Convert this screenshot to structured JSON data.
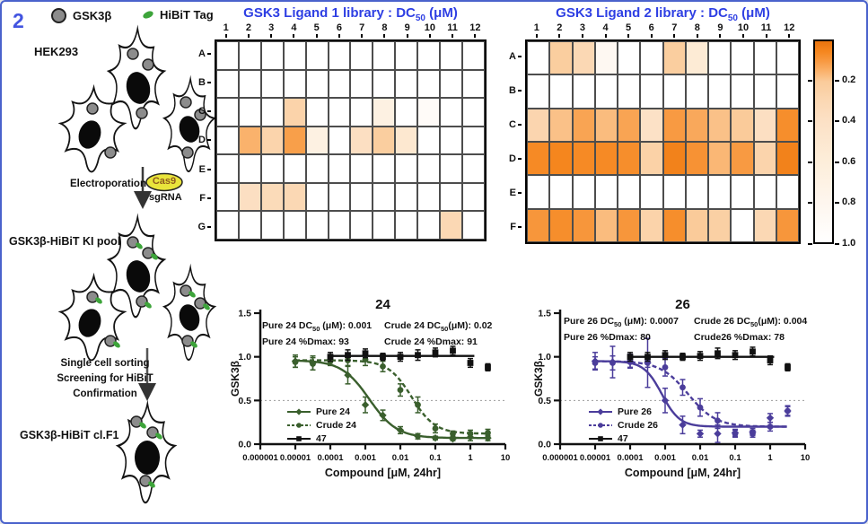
{
  "figure_number": "2",
  "colors": {
    "accent_blue": "#2E3FE3",
    "border_blue": "#4A62CC",
    "green_series": "#3A5F2D",
    "purple_series": "#4B3D9B",
    "black_series": "#111111",
    "gsk3b_dot_grey": "#8C8C8C",
    "hibit_green": "#3DA43A",
    "cas9_yellow": "#E9E43B"
  },
  "legend_top": {
    "gsk3b_label": "GSK3β",
    "hibit_label": "HiBiT Tag"
  },
  "diagram": {
    "cell_line_label": "HEK293",
    "electroporation_label": "Electroporation",
    "cas9_label": "Cas9",
    "sgrna_label": "sgRNA",
    "ki_pool_label": "GSK3β-HiBiT KI pool",
    "sorting_steps": [
      "Single cell sorting",
      "Screening for HiBiT",
      "Confirmation"
    ],
    "clone_label": "GSK3β-HiBiT cl.F1"
  },
  "chart_data": [
    {
      "type": "heatmap",
      "title": {
        "pre": "GSK3 Ligand 1 library : DC",
        "sub": "50",
        "tail": " (μM)"
      },
      "columns": [
        "1",
        "2",
        "3",
        "4",
        "5",
        "6",
        "7",
        "8",
        "9",
        "10",
        "11",
        "12"
      ],
      "rows": [
        "A",
        "B",
        "C",
        "D",
        "E",
        "F",
        "G"
      ],
      "value_meaning": "DC50 (uM), 1.0 = white/inactive",
      "values": [
        [
          1,
          1,
          1,
          1,
          1,
          1,
          1,
          1,
          1,
          1,
          1,
          1
        ],
        [
          1,
          1,
          1,
          1,
          1,
          1,
          1,
          1,
          1,
          1,
          1,
          1
        ],
        [
          1,
          1,
          1,
          0.26,
          1,
          1,
          1,
          0.68,
          1,
          0.92,
          1,
          1
        ],
        [
          1,
          0.15,
          0.27,
          0.11,
          0.68,
          1,
          0.38,
          0.22,
          0.5,
          1,
          1,
          1
        ],
        [
          1,
          1,
          1,
          1,
          1,
          1,
          1,
          1,
          1,
          1,
          1,
          1
        ],
        [
          1,
          0.38,
          0.33,
          0.3,
          1,
          1,
          1,
          1,
          1,
          1,
          1,
          1
        ],
        [
          1,
          1,
          1,
          1,
          1,
          1,
          1,
          1,
          1,
          1,
          0.3,
          1
        ]
      ],
      "color_scale": [
        [
          0,
          "#E8730E"
        ],
        [
          0.05,
          "#F5861E"
        ],
        [
          0.1,
          "#F89A42"
        ],
        [
          0.15,
          "#FAB26C"
        ],
        [
          0.2,
          "#FACB9A"
        ],
        [
          0.3,
          "#FBD8B4"
        ],
        [
          0.4,
          "#FCE1C6"
        ],
        [
          0.6,
          "#FDEEDA"
        ],
        [
          0.8,
          "#FEF6EE"
        ],
        [
          1,
          "#FFFFFF"
        ]
      ]
    },
    {
      "type": "heatmap",
      "title": {
        "pre": "GSK3 Ligand 2 library : DC",
        "sub": "50",
        "tail": " (μM)"
      },
      "columns": [
        "1",
        "2",
        "3",
        "4",
        "5",
        "6",
        "7",
        "8",
        "9",
        "10",
        "11",
        "12"
      ],
      "rows": [
        "A",
        "B",
        "C",
        "D",
        "E",
        "F"
      ],
      "value_meaning": "DC50 (uM), 1.0 = white/inactive",
      "values": [
        [
          1,
          0.22,
          0.3,
          0.85,
          1,
          1,
          0.22,
          0.55,
          1,
          1,
          1,
          1
        ],
        [
          1,
          1,
          1,
          1,
          1,
          1,
          1,
          1,
          1,
          1,
          1,
          1
        ],
        [
          0.28,
          0.18,
          0.12,
          0.17,
          0.12,
          0.4,
          0.1,
          0.13,
          0.18,
          0.2,
          0.38,
          0.07
        ],
        [
          0.06,
          0.05,
          0.06,
          0.06,
          0.07,
          0.25,
          0.04,
          0.08,
          0.16,
          0.1,
          0.27,
          0.04
        ],
        [
          1,
          1,
          1,
          1,
          1,
          1,
          1,
          1,
          1,
          1,
          1,
          1
        ],
        [
          0.09,
          0.07,
          0.09,
          0.17,
          0.09,
          0.26,
          0.07,
          0.2,
          0.24,
          1,
          0.3,
          0.09
        ]
      ],
      "color_scale": [
        [
          0,
          "#E8730E"
        ],
        [
          0.05,
          "#F5861E"
        ],
        [
          0.1,
          "#F89A42"
        ],
        [
          0.15,
          "#FAB26C"
        ],
        [
          0.2,
          "#FACB9A"
        ],
        [
          0.3,
          "#FBD8B4"
        ],
        [
          0.4,
          "#FCE1C6"
        ],
        [
          0.6,
          "#FDEEDA"
        ],
        [
          0.8,
          "#FEF6EE"
        ],
        [
          1,
          "#FFFFFF"
        ]
      ],
      "colorbar": {
        "orientation": "vertical",
        "ticks": [
          "0.2",
          "0.4",
          "0.6",
          "0.8",
          "1.0"
        ]
      }
    },
    {
      "type": "line",
      "title": "24",
      "xlabel": "Compound [μM, 24hr]",
      "ylabel": "GSK3β",
      "x_scale": "log",
      "x_ticks": [
        "0.000001",
        "0.00001",
        "0.0001",
        "0.001",
        "0.01",
        "0.1",
        "1",
        "10"
      ],
      "y_ticks": [
        "0.0",
        "0.5",
        "1.0",
        "1.5"
      ],
      "ylim": [
        0,
        1.5
      ],
      "gridline_y": 0.5,
      "annotations": {
        "left": [
          {
            "pre": "Pure 24 DC",
            "sub": "50",
            "tail": " (μM): 0.001"
          },
          {
            "pre": "Pure 24 %Dmax: 93"
          }
        ],
        "right": [
          {
            "pre": "Crude 24 DC",
            "sub": "50",
            "tail": "(μM): 0.02"
          },
          {
            "pre": "Crude 24 %Dmax: 91"
          }
        ]
      },
      "series": [
        {
          "name": "Pure 24",
          "color": "#3A5F2D",
          "style": "solid",
          "marker": "diamond",
          "x": [
            1e-05,
            3.16e-05,
            0.0001,
            0.000316,
            0.001,
            0.00316,
            0.01,
            0.0316,
            0.1,
            0.316,
            1,
            3.16
          ],
          "y": [
            0.95,
            0.93,
            0.96,
            0.79,
            0.45,
            0.33,
            0.16,
            0.09,
            0.07,
            0.06,
            0.08,
            0.07
          ],
          "err": [
            0.07,
            0.08,
            0.05,
            0.1,
            0.09,
            0.06,
            0.04,
            0.03,
            0.02,
            0.02,
            0.04,
            0.03
          ],
          "fit": {
            "top": 0.96,
            "bottom": 0.07,
            "ec50": 0.0013,
            "hill": 1.1
          }
        },
        {
          "name": "Crude 24",
          "color": "#3A5F2D",
          "style": "dashed",
          "dash": "5,3",
          "marker": "circle",
          "x": [
            1e-05,
            3.16e-05,
            0.0001,
            0.000316,
            0.001,
            0.00316,
            0.01,
            0.0316,
            0.1,
            0.316,
            1,
            3.16
          ],
          "y": [
            0.94,
            0.92,
            0.95,
            0.96,
            0.97,
            0.89,
            0.62,
            0.45,
            0.18,
            0.12,
            0.12,
            0.13
          ],
          "err": [
            0.06,
            0.07,
            0.05,
            0.06,
            0.07,
            0.06,
            0.07,
            0.09,
            0.05,
            0.03,
            0.04,
            0.04
          ],
          "fit": {
            "top": 0.96,
            "bottom": 0.12,
            "ec50": 0.021,
            "hill": 1.3
          }
        },
        {
          "name": "47",
          "color": "#111111",
          "style": "solid",
          "marker": "square",
          "x": [
            0.0001,
            0.000316,
            0.001,
            0.00316,
            0.01,
            0.0316,
            0.1,
            0.316,
            1,
            3.16
          ],
          "y": [
            1.0,
            1.02,
            1.04,
            1.0,
            1.0,
            1.02,
            1.05,
            1.07,
            0.93,
            0.88
          ],
          "err": [
            0.05,
            0.06,
            0.05,
            0.04,
            0.05,
            0.06,
            0.05,
            0.05,
            0.05,
            0.04
          ],
          "flat_line": {
            "x1": 0.0001,
            "x2": 1.3,
            "y": 1.01
          }
        }
      ]
    },
    {
      "type": "line",
      "title": "26",
      "xlabel": "Compound [μM, 24hr]",
      "ylabel": "GSK3β",
      "x_scale": "log",
      "x_ticks": [
        "0.000001",
        "0.00001",
        "0.0001",
        "0.001",
        "0.01",
        "0.1",
        "1",
        "10"
      ],
      "y_ticks": [
        "0.0",
        "0.5",
        "1.0",
        "1.5"
      ],
      "ylim": [
        0,
        1.5
      ],
      "gridline_y": 0.5,
      "annotations": {
        "left": [
          {
            "pre": "Pure 26 DC",
            "sub": "50",
            "tail": " (μM): 0.0007"
          },
          {
            "pre": "Pure 26 %Dmax: 80"
          }
        ],
        "right": [
          {
            "pre": "Crude 26 DC",
            "sub": "50",
            "tail": "(μM): 0.004"
          },
          {
            "pre": "Crude26 %Dmax: 78"
          }
        ]
      },
      "series": [
        {
          "name": "Pure 26",
          "color": "#4B3D9B",
          "style": "solid",
          "marker": "diamond",
          "x": [
            1e-05,
            3.16e-05,
            0.0001,
            0.000316,
            0.001,
            0.00316,
            0.01,
            0.0316,
            0.1,
            0.316,
            1,
            3.16
          ],
          "y": [
            0.95,
            0.94,
            0.95,
            0.93,
            0.5,
            0.22,
            0.12,
            0.12,
            0.13,
            0.14,
            0.3,
            0.38
          ],
          "err": [
            0.1,
            0.18,
            0.08,
            0.28,
            0.14,
            0.1,
            0.04,
            0.1,
            0.04,
            0.04,
            0.05,
            0.06
          ],
          "fit": {
            "top": 0.95,
            "bottom": 0.2,
            "ec50": 0.0008,
            "hill": 1.7
          }
        },
        {
          "name": "Crude 26",
          "color": "#4B3D9B",
          "style": "dashed",
          "dash": "5,3",
          "marker": "circle",
          "x": [
            1e-05,
            3.16e-05,
            0.0001,
            0.000316,
            0.001,
            0.00316,
            0.01,
            0.0316,
            0.1,
            0.316,
            1,
            3.16
          ],
          "y": [
            0.93,
            0.93,
            0.94,
            0.95,
            0.88,
            0.65,
            0.42,
            0.27,
            0.12,
            0.12,
            0.2,
            0.38
          ],
          "err": [
            0.07,
            0.08,
            0.06,
            0.07,
            0.1,
            0.09,
            0.1,
            0.09,
            0.04,
            0.04,
            0.05,
            0.05
          ],
          "fit": {
            "top": 0.95,
            "bottom": 0.2,
            "ec50": 0.0045,
            "hill": 1.1
          }
        },
        {
          "name": "47",
          "color": "#111111",
          "style": "solid",
          "marker": "square",
          "x": [
            0.0001,
            0.000316,
            0.001,
            0.00316,
            0.01,
            0.0316,
            0.1,
            0.316,
            1,
            3.16
          ],
          "y": [
            1.0,
            1.0,
            1.02,
            1.0,
            1.01,
            1.04,
            1.02,
            1.06,
            0.96,
            0.88
          ],
          "err": [
            0.05,
            0.05,
            0.05,
            0.04,
            0.05,
            0.06,
            0.05,
            0.05,
            0.05,
            0.04
          ],
          "flat_line": {
            "x1": 0.0001,
            "x2": 1.3,
            "y": 1.0
          }
        }
      ]
    }
  ]
}
